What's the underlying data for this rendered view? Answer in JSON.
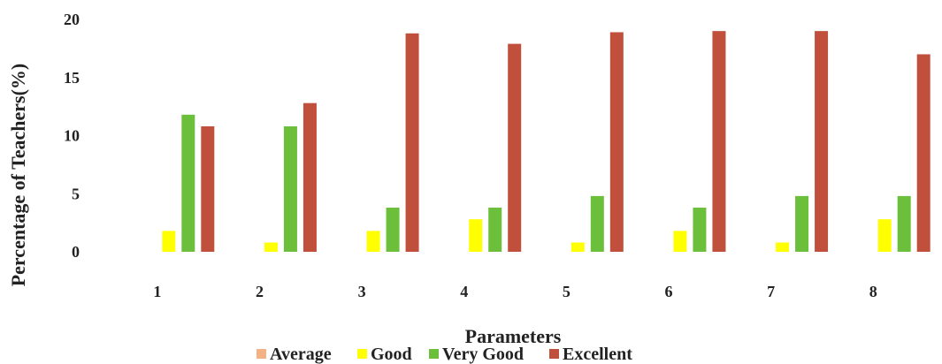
{
  "chart_data": {
    "type": "bar",
    "xlabel": "Parameters",
    "ylabel": "Percentage of Teachers(%)",
    "categories": [
      "1",
      "2",
      "3",
      "4",
      "5",
      "6",
      "7",
      "8"
    ],
    "ylim": [
      0,
      20
    ],
    "yticks": [
      "0",
      "5",
      "10",
      "15",
      "20"
    ],
    "grid": false,
    "legend_position": "bottom",
    "series": [
      {
        "name": "Average",
        "color": "#f4b183",
        "values": [
          0,
          0,
          0,
          0,
          0,
          0,
          0,
          0
        ]
      },
      {
        "name": "Good",
        "color": "#ffff00",
        "values": [
          1.8,
          0.8,
          1.8,
          2.8,
          0.8,
          1.8,
          0.8,
          2.8
        ]
      },
      {
        "name": "Very Good",
        "color": "#6bbf3a",
        "values": [
          11.8,
          10.8,
          3.8,
          3.8,
          4.8,
          3.8,
          4.8,
          4.8
        ]
      },
      {
        "name": "Excellent",
        "color": "#c0503c",
        "values": [
          10.8,
          12.8,
          18.8,
          17.9,
          18.9,
          19.0,
          19.0,
          17.0
        ]
      }
    ]
  }
}
